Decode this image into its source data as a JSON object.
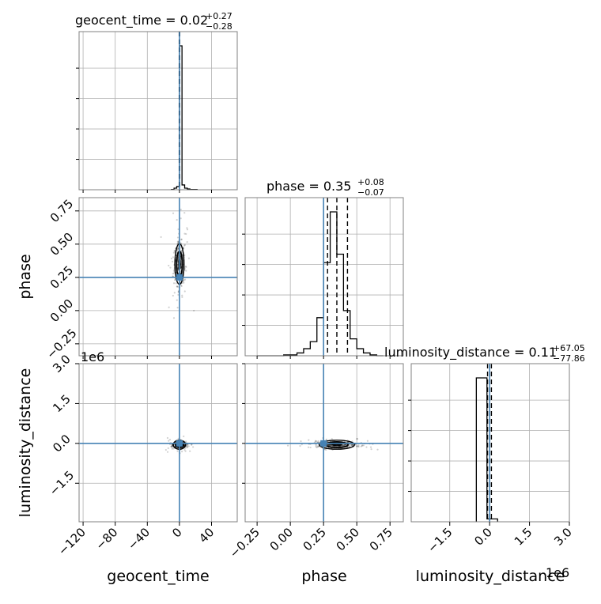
{
  "chart_data": {
    "type": "corner",
    "parameters": [
      "geocent_time",
      "phase",
      "luminosity_distance"
    ],
    "truth_color": "#4682b4",
    "truths": {
      "geocent_time": 0.0,
      "phase": 0.25,
      "luminosity_distance": 0.0
    },
    "titles": {
      "geocent_time": {
        "label": "geocent_time = 0.02",
        "plus": "+0.27",
        "minus": "−0.28"
      },
      "phase": {
        "label": "phase = 0.35",
        "plus": "+0.08",
        "minus": "−0.07"
      },
      "luminosity_distance": {
        "label": "luminosity_distance = 0.11",
        "plus": "+67.05",
        "minus": "−77.86"
      }
    },
    "axis_labels": {
      "geocent_time": "geocent_time",
      "phase": "phase",
      "luminosity_distance": "luminosity_distance"
    },
    "ranges": {
      "geocent_time": [
        -125,
        72
      ],
      "phase": [
        -0.34,
        0.85
      ],
      "luminosity_distance": [
        -2950000,
        3000000
      ]
    },
    "ticks": {
      "geocent_time": {
        "values": [
          -120,
          -80,
          -40,
          0,
          40
        ],
        "labels": [
          "−120",
          "−80",
          "−40",
          "0",
          "40"
        ]
      },
      "phase": {
        "values": [
          -0.25,
          0.0,
          0.25,
          0.5,
          0.75
        ],
        "labels": [
          "−0.25",
          "0.00",
          "0.25",
          "0.50",
          "0.75"
        ]
      },
      "luminosity_distance": {
        "values": [
          -1500000,
          0,
          1500000,
          3000000
        ],
        "labels": [
          "−1.5",
          "0.0",
          "1.5",
          "3.0"
        ]
      }
    },
    "offset_text": "1e6",
    "histograms": {
      "geocent_time": {
        "edges": [
          -10,
          -6.7,
          -3.4,
          -0.1,
          3.2,
          6.5,
          9.8,
          13.1,
          22
        ],
        "counts": [
          0.2,
          1.0,
          2.0,
          90,
          3.0,
          1.0,
          0.5,
          0.2
        ],
        "quantiles": [
          -0.26,
          0.02,
          0.29
        ]
      },
      "phase": {
        "edges": [
          -0.25,
          -0.2,
          -0.15,
          -0.1,
          -0.05,
          0.0,
          0.05,
          0.1,
          0.15,
          0.2,
          0.25,
          0.3,
          0.35,
          0.4,
          0.45,
          0.5,
          0.55,
          0.6,
          0.65,
          0.7
        ],
        "counts": [
          0,
          0,
          0,
          0,
          0.3,
          0.3,
          1.0,
          2.5,
          5.0,
          13.5,
          33.0,
          51.0,
          36.0,
          16.0,
          6.0,
          2.5,
          1.0,
          0.3,
          0
        ],
        "quantiles": [
          0.28,
          0.35,
          0.43
        ]
      },
      "luminosity_distance": {
        "edges": [
          -500000,
          -100000,
          300000
        ],
        "counts": [
          100,
          2
        ],
        "quantiles": [
          -77750,
          110,
          67160
        ]
      }
    },
    "samples": [
      {
        "x": "geocent_time",
        "y": "phase",
        "center": [
          0.02,
          0.35
        ],
        "sd": [
          3.0,
          0.08
        ]
      },
      {
        "x": "geocent_time",
        "y": "luminosity_distance",
        "center": [
          0.0,
          -50000
        ],
        "sd": [
          4.0,
          60000
        ]
      },
      {
        "x": "phase",
        "y": "luminosity_distance",
        "center": [
          0.35,
          -50000
        ],
        "sd": [
          0.07,
          60000
        ]
      }
    ]
  }
}
